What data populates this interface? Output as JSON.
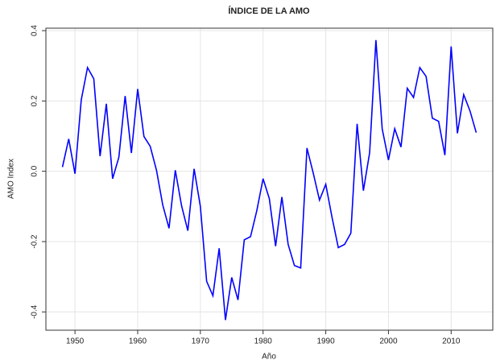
{
  "chart_data": {
    "type": "line",
    "title": "ÍNDICE DE LA AMO",
    "x_label": "Año",
    "y_label": "AMO Index",
    "x": [
      1948,
      1949,
      1950,
      1951,
      1952,
      1953,
      1954,
      1955,
      1956,
      1957,
      1958,
      1959,
      1960,
      1961,
      1962,
      1963,
      1964,
      1965,
      1966,
      1967,
      1968,
      1969,
      1970,
      1971,
      1972,
      1973,
      1974,
      1975,
      1976,
      1977,
      1978,
      1979,
      1980,
      1981,
      1982,
      1983,
      1984,
      1985,
      1986,
      1987,
      1988,
      1989,
      1990,
      1991,
      1992,
      1993,
      1994,
      1995,
      1996,
      1997,
      1998,
      1999,
      2000,
      2001,
      2002,
      2003,
      2004,
      2005,
      2006,
      2007,
      2008,
      2009,
      2010,
      2011,
      2012,
      2013,
      2014
    ],
    "series": [
      {
        "color": "#0000ff",
        "values": [
          0.012,
          0.092,
          -0.007,
          0.203,
          0.295,
          0.263,
          0.043,
          0.192,
          -0.021,
          0.04,
          0.214,
          0.052,
          0.234,
          0.099,
          0.071,
          0.003,
          -0.096,
          -0.162,
          0.003,
          -0.098,
          -0.169,
          0.007,
          -0.1,
          -0.313,
          -0.354,
          -0.219,
          -0.423,
          -0.302,
          -0.366,
          -0.195,
          -0.186,
          -0.112,
          -0.021,
          -0.078,
          -0.213,
          -0.073,
          -0.208,
          -0.268,
          -0.275,
          0.066,
          -0.005,
          -0.082,
          -0.037,
          -0.131,
          -0.217,
          -0.208,
          -0.176,
          0.135,
          -0.055,
          0.053,
          0.373,
          0.121,
          0.032,
          0.121,
          0.069,
          0.236,
          0.21,
          0.295,
          0.27,
          0.151,
          0.142,
          0.046,
          0.355,
          0.108,
          0.218,
          0.172,
          0.11
        ]
      }
    ],
    "xlim": [
      1945.36,
      2016.64
    ],
    "ylim": [
      -0.452,
      0.407
    ],
    "xticks": [
      1950,
      1960,
      1970,
      1980,
      1990,
      2000,
      2010
    ],
    "yticks": [
      -0.4,
      -0.2,
      {
        "value": 0,
        "label": "0.0"
      },
      0.2,
      0.4
    ],
    "grid": true
  }
}
